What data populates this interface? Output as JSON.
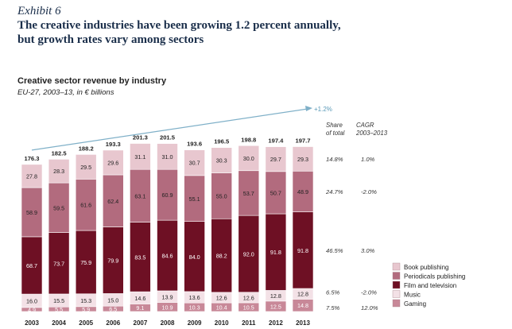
{
  "exhibit": "Exhibit 6",
  "headline_line1": "The creative industries have been growing 1.2 percent annually,",
  "headline_line2": "but growth rates vary among sectors",
  "chart_data": {
    "type": "bar",
    "stacked": true,
    "title": "Creative sector revenue by industry",
    "subtitle": "EU-27, 2003–13, in € billions",
    "categories": [
      "2003",
      "2004",
      "2005",
      "2006",
      "2007",
      "2008",
      "2009",
      "2010",
      "2011",
      "2012",
      "2013"
    ],
    "totals": [
      176.3,
      182.5,
      188.2,
      193.3,
      201.3,
      201.5,
      193.6,
      196.5,
      198.8,
      197.4,
      197.7
    ],
    "series": [
      {
        "name": "Gaming",
        "color": "#c88898",
        "values": [
          4.9,
          5.5,
          5.9,
          6.5,
          9.1,
          10.9,
          10.3,
          10.4,
          10.5,
          12.5,
          14.8
        ],
        "share": "7.5%",
        "cagr": "12.0%"
      },
      {
        "name": "Music",
        "color": "#f3e1e6",
        "values": [
          16.0,
          15.5,
          15.3,
          15.0,
          14.6,
          13.9,
          13.6,
          12.6,
          12.6,
          12.8,
          12.8
        ],
        "share": "6.5%",
        "cagr": "-2.0%"
      },
      {
        "name": "Film and television",
        "color": "#6e1024",
        "values": [
          68.7,
          73.7,
          75.9,
          79.9,
          83.5,
          84.6,
          84.0,
          88.2,
          92.0,
          91.8,
          91.8
        ],
        "share": "46.5%",
        "cagr": "3.0%"
      },
      {
        "name": "Periodicals publishing",
        "color": "#b26b7e",
        "values": [
          58.9,
          59.5,
          61.6,
          62.4,
          63.1,
          60.9,
          55.1,
          55.0,
          53.7,
          50.7,
          48.9
        ],
        "share": "24.7%",
        "cagr": "-2.0%"
      },
      {
        "name": "Book publishing",
        "color": "#e8c7cf",
        "values": [
          27.8,
          28.3,
          29.5,
          29.6,
          31.1,
          31.0,
          30.7,
          30.3,
          30.0,
          29.7,
          29.3
        ],
        "share": "14.8%",
        "cagr": "1.0%"
      }
    ],
    "legend_order": [
      "Book publishing",
      "Periodicals publishing",
      "Film and television",
      "Music",
      "Gaming"
    ],
    "legend_position": "bottom-right",
    "growth_annotation": "+1.2%",
    "share_header": "Share\nof total",
    "cagr_header": "CAGR\n2003–2013",
    "ylim": [
      0,
      210
    ]
  }
}
